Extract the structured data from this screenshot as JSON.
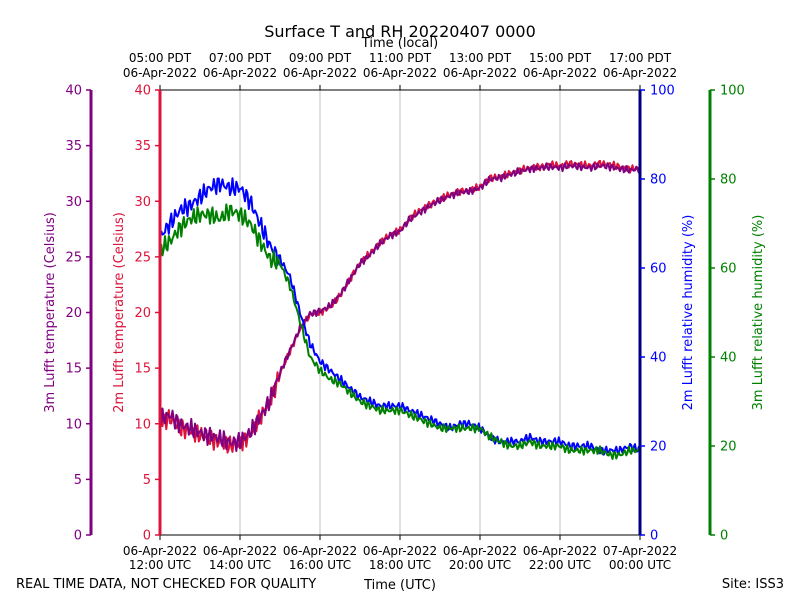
{
  "chart_data": {
    "type": "line",
    "title": "Surface T and RH 20220407 0000",
    "top_axis_label": "Time (local)",
    "xlabel": "Time (UTC)",
    "footer_left": "REAL TIME DATA, NOT CHECKED FOR QUALITY",
    "footer_right": "Site: ISS3",
    "x_range_hours_utc": [
      12,
      24
    ],
    "x_ticks": [
      {
        "hour": 12,
        "utc_date": "06-Apr-2022",
        "utc_time": "12:00 UTC",
        "local_time": "05:00 PDT",
        "local_date": "06-Apr-2022"
      },
      {
        "hour": 14,
        "utc_date": "06-Apr-2022",
        "utc_time": "14:00 UTC",
        "local_time": "07:00 PDT",
        "local_date": "06-Apr-2022"
      },
      {
        "hour": 16,
        "utc_date": "06-Apr-2022",
        "utc_time": "16:00 UTC",
        "local_time": "09:00 PDT",
        "local_date": "06-Apr-2022"
      },
      {
        "hour": 18,
        "utc_date": "06-Apr-2022",
        "utc_time": "18:00 UTC",
        "local_time": "11:00 PDT",
        "local_date": "06-Apr-2022"
      },
      {
        "hour": 20,
        "utc_date": "06-Apr-2022",
        "utc_time": "20:00 UTC",
        "local_time": "13:00 PDT",
        "local_date": "06-Apr-2022"
      },
      {
        "hour": 22,
        "utc_date": "06-Apr-2022",
        "utc_time": "22:00 UTC",
        "local_time": "15:00 PDT",
        "local_date": "06-Apr-2022"
      },
      {
        "hour": 24,
        "utc_date": "07-Apr-2022",
        "utc_time": "00:00 UTC",
        "local_time": "17:00 PDT",
        "local_date": "06-Apr-2022"
      }
    ],
    "axes": {
      "temp3m": {
        "label": "3m Lufft temperature (Celsius)",
        "ylim": [
          0,
          40
        ],
        "ticks": [
          "0",
          "5",
          "10",
          "15",
          "20",
          "25",
          "30",
          "35",
          "40"
        ],
        "color": "#800080"
      },
      "temp2m": {
        "label": "2m Lufft temperature (Celsius)",
        "ylim": [
          0,
          40
        ],
        "ticks": [
          "0",
          "5",
          "10",
          "15",
          "20",
          "25",
          "30",
          "35",
          "40"
        ],
        "color": "#dc143c"
      },
      "rh2m": {
        "label": "2m Lufft relative humidity (%)",
        "ylim": [
          0,
          100
        ],
        "ticks": [
          "0",
          "20",
          "40",
          "60",
          "80",
          "100"
        ],
        "color": "#0000ff"
      },
      "rh3m": {
        "label": "3m Lufft relative humidity (%)",
        "ylim": [
          0,
          100
        ],
        "ticks": [
          "0",
          "20",
          "40",
          "60",
          "80",
          "100"
        ],
        "color": "#008000"
      }
    },
    "series": [
      {
        "name": "2m Lufft temperature",
        "axis": "temp2m",
        "color": "#dc143c",
        "x": [
          12.0,
          12.25,
          12.5,
          12.75,
          13.0,
          13.25,
          13.5,
          13.75,
          14.0,
          14.25,
          14.5,
          14.75,
          15.0,
          15.25,
          15.5,
          15.75,
          16.0,
          16.25,
          16.5,
          16.75,
          17.0,
          17.25,
          17.5,
          17.75,
          18.0,
          18.25,
          18.5,
          18.75,
          19.0,
          19.25,
          19.5,
          19.75,
          20.0,
          20.25,
          20.5,
          20.75,
          21.0,
          21.25,
          21.5,
          21.75,
          22.0,
          22.25,
          22.5,
          22.75,
          23.0,
          23.25,
          23.5,
          23.75,
          24.0
        ],
        "y": [
          10.2,
          10.5,
          9.6,
          9.3,
          9.0,
          8.6,
          8.4,
          8.0,
          8.2,
          9.0,
          10.5,
          12.0,
          14.5,
          16.5,
          18.5,
          19.8,
          20.0,
          20.5,
          21.5,
          23.0,
          24.5,
          25.3,
          26.3,
          27.0,
          27.4,
          28.5,
          29.2,
          29.7,
          30.2,
          30.6,
          30.9,
          31.0,
          31.3,
          32.1,
          32.2,
          32.5,
          32.8,
          33.0,
          33.1,
          33.3,
          33.2,
          33.4,
          33.3,
          33.2,
          33.4,
          33.3,
          33.1,
          32.9,
          33.0
        ]
      },
      {
        "name": "3m Lufft temperature",
        "axis": "temp3m",
        "color": "#800080",
        "x": [
          12.0,
          12.25,
          12.5,
          12.75,
          13.0,
          13.25,
          13.5,
          13.75,
          14.0,
          14.25,
          14.5,
          14.75,
          15.0,
          15.25,
          15.5,
          15.75,
          16.0,
          16.25,
          16.5,
          16.75,
          17.0,
          17.25,
          17.5,
          17.75,
          18.0,
          18.25,
          18.5,
          18.75,
          19.0,
          19.25,
          19.5,
          19.75,
          20.0,
          20.25,
          20.5,
          20.75,
          21.0,
          21.25,
          21.5,
          21.75,
          22.0,
          22.25,
          22.5,
          22.75,
          23.0,
          23.25,
          23.5,
          23.75,
          24.0
        ],
        "y": [
          10.4,
          10.8,
          9.9,
          9.6,
          9.2,
          8.9,
          8.7,
          8.3,
          8.4,
          9.2,
          10.6,
          12.1,
          14.6,
          16.6,
          18.6,
          19.9,
          20.1,
          20.6,
          21.6,
          23.0,
          24.4,
          25.2,
          26.2,
          26.9,
          27.3,
          28.4,
          29.0,
          29.6,
          30.1,
          30.5,
          30.8,
          30.9,
          31.2,
          32.0,
          32.1,
          32.4,
          32.7,
          32.9,
          33.0,
          33.1,
          33.0,
          33.2,
          33.1,
          33.0,
          33.2,
          33.1,
          32.9,
          32.8,
          32.9
        ]
      },
      {
        "name": "2m Lufft relative humidity",
        "axis": "rh2m",
        "color": "#0000ff",
        "x": [
          12.0,
          12.25,
          12.5,
          12.75,
          13.0,
          13.25,
          13.5,
          13.75,
          14.0,
          14.25,
          14.5,
          14.75,
          15.0,
          15.25,
          15.5,
          15.75,
          16.0,
          16.25,
          16.5,
          16.75,
          17.0,
          17.25,
          17.5,
          17.75,
          18.0,
          18.25,
          18.5,
          18.75,
          19.0,
          19.25,
          19.5,
          19.75,
          20.0,
          20.25,
          20.5,
          20.75,
          21.0,
          21.25,
          21.5,
          21.75,
          22.0,
          22.25,
          22.5,
          22.75,
          23.0,
          23.25,
          23.5,
          23.75,
          24.0
        ],
        "y": [
          67,
          70,
          73,
          74,
          76,
          78,
          79,
          78,
          78,
          75,
          70,
          65,
          62,
          58,
          50,
          43,
          39,
          37,
          35,
          33,
          31,
          30,
          29,
          29,
          29,
          28,
          27,
          26,
          25,
          24,
          25,
          25,
          24,
          22,
          21,
          21,
          21,
          22,
          21,
          21,
          21,
          20,
          20,
          20,
          19,
          19,
          19,
          20,
          19
        ]
      },
      {
        "name": "3m Lufft relative humidity",
        "axis": "rh3m",
        "color": "#008000",
        "x": [
          12.0,
          12.25,
          12.5,
          12.75,
          13.0,
          13.25,
          13.5,
          13.75,
          14.0,
          14.25,
          14.5,
          14.75,
          15.0,
          15.25,
          15.5,
          15.75,
          16.0,
          16.25,
          16.5,
          16.75,
          17.0,
          17.25,
          17.5,
          17.75,
          18.0,
          18.25,
          18.5,
          18.75,
          19.0,
          19.25,
          19.5,
          19.75,
          20.0,
          20.25,
          20.5,
          20.75,
          21.0,
          21.25,
          21.5,
          21.75,
          22.0,
          22.25,
          22.5,
          22.75,
          23.0,
          23.25,
          23.5,
          23.75,
          24.0
        ],
        "y": [
          64,
          66,
          69,
          71,
          72,
          72,
          71,
          73,
          72,
          70,
          66,
          62,
          61,
          56,
          48,
          40,
          37,
          35,
          34,
          32,
          30,
          29,
          28,
          28,
          28,
          27,
          26,
          25,
          24,
          24,
          24,
          24,
          24,
          22,
          21,
          20,
          20,
          21,
          20,
          20,
          20,
          19,
          19,
          19,
          19,
          18,
          18,
          19,
          19
        ]
      }
    ]
  }
}
